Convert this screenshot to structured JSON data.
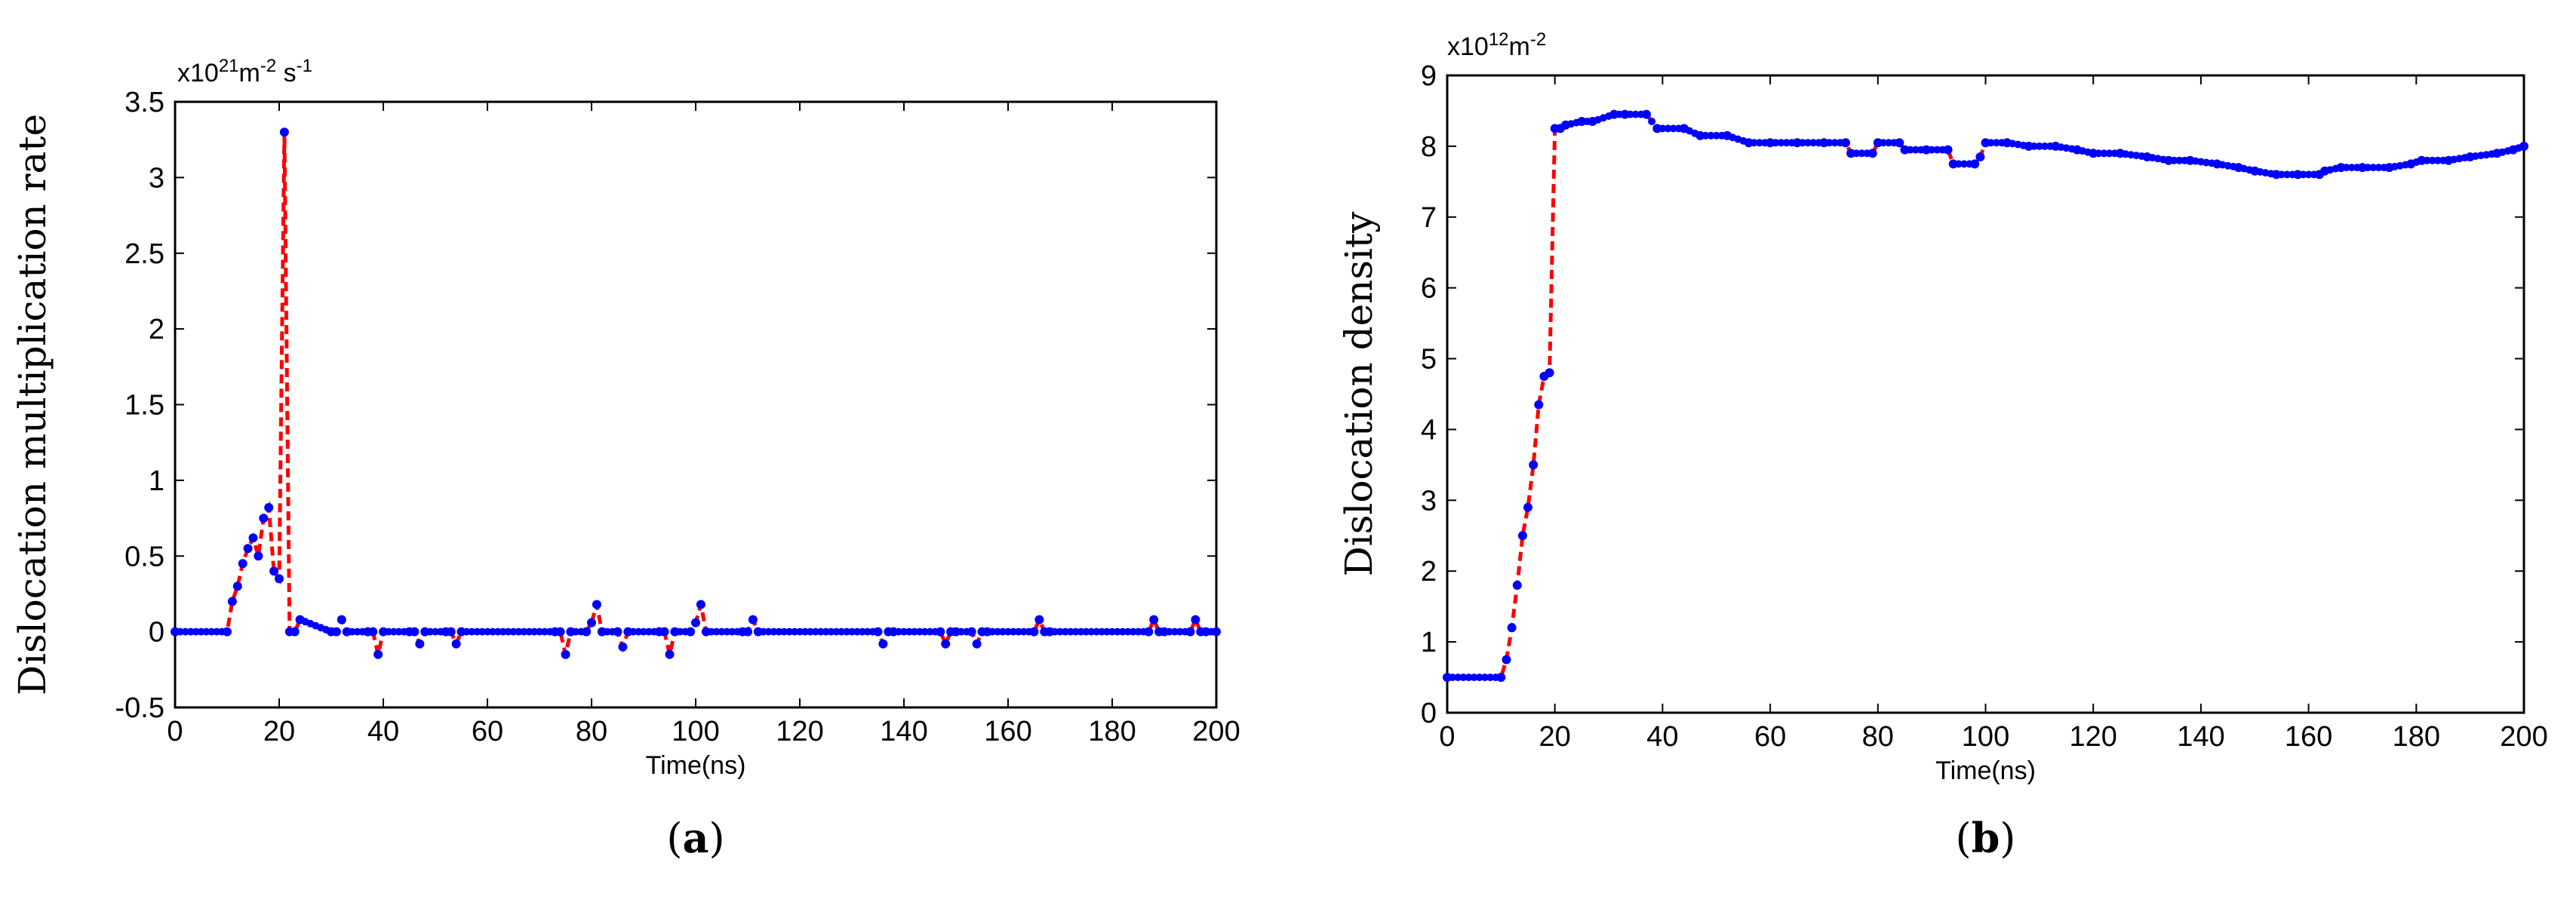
{
  "chart_data": [
    {
      "id": "a",
      "type": "line",
      "panel_label": "a",
      "ylabel": "Dislocation multiplication rate",
      "xlabel": "Time(ns)",
      "multiplier": {
        "base": "x10",
        "exp": "21",
        "unit1": "m",
        "unit1_exp": "-2",
        "unit2": " s",
        "unit2_exp": "-1"
      },
      "xlim": [
        0,
        200
      ],
      "ylim": [
        -0.5,
        3.5
      ],
      "xticks": [
        0,
        20,
        40,
        60,
        80,
        100,
        120,
        140,
        160,
        180,
        200
      ],
      "yticks": [
        -0.5,
        0,
        0.5,
        1,
        1.5,
        2,
        2.5,
        3,
        3.5
      ],
      "ytick_labels": [
        "-0.5",
        "0",
        "0.5",
        "1",
        "1.5",
        "2",
        "2.5",
        "3",
        "3.5"
      ],
      "series_colors": {
        "line": "#ff0000",
        "markers": "#0000ff"
      },
      "x": [
        0,
        10,
        11,
        12,
        13,
        14,
        15,
        16,
        17,
        18,
        19,
        20,
        21,
        22,
        23,
        24,
        30,
        31,
        32,
        33,
        37,
        38,
        39,
        40,
        45,
        46,
        47,
        48,
        52,
        53,
        54,
        55,
        73,
        74,
        75,
        76,
        79,
        80,
        81,
        82,
        85,
        86,
        87,
        93,
        94,
        95,
        96,
        99,
        100,
        101,
        102,
        109,
        110,
        111,
        112,
        135,
        136,
        137,
        138,
        147,
        148,
        149,
        150,
        153,
        154,
        155,
        156,
        165,
        166,
        167,
        168,
        187,
        188,
        189,
        190,
        195,
        196,
        197,
        198,
        200
      ],
      "y": [
        0,
        0,
        0.2,
        0.3,
        0.45,
        0.55,
        0.62,
        0.5,
        0.75,
        0.82,
        0.4,
        0.35,
        3.3,
        0,
        0,
        0.08,
        0,
        0,
        0.08,
        0,
        0,
        0,
        -0.15,
        0,
        0,
        0,
        -0.08,
        0,
        0,
        0,
        -0.08,
        0,
        0,
        0,
        -0.15,
        0,
        0,
        0.06,
        0.18,
        0,
        0,
        -0.1,
        0,
        0,
        0,
        -0.15,
        0,
        0,
        0.06,
        0.18,
        0,
        0,
        0,
        0.08,
        0,
        0,
        -0.08,
        0,
        0,
        0,
        -0.08,
        0,
        0,
        0,
        -0.08,
        0,
        0,
        0,
        0.08,
        0,
        0,
        0,
        0.08,
        0,
        0,
        0,
        0.08,
        0,
        0,
        0
      ]
    },
    {
      "id": "b",
      "type": "line",
      "panel_label": "b",
      "ylabel": "Dislocation density",
      "xlabel": "Time(ns)",
      "multiplier": {
        "base": "x10",
        "exp": "12",
        "unit1": "m",
        "unit1_exp": "-2",
        "unit2": "",
        "unit2_exp": ""
      },
      "xlim": [
        0,
        200
      ],
      "ylim": [
        0,
        9
      ],
      "xticks": [
        0,
        20,
        40,
        60,
        80,
        100,
        120,
        140,
        160,
        180,
        200
      ],
      "yticks": [
        0,
        1,
        2,
        3,
        4,
        5,
        6,
        7,
        8,
        9
      ],
      "ytick_labels": [
        "0",
        "1",
        "2",
        "3",
        "4",
        "5",
        "6",
        "7",
        "8",
        "9"
      ],
      "series_colors": {
        "line": "#ff0000",
        "markers": "#0000ff"
      },
      "x": [
        0,
        10,
        11,
        12,
        13,
        14,
        15,
        16,
        17,
        18,
        19,
        20,
        21,
        22,
        25,
        27,
        31,
        33,
        37,
        39,
        44,
        47,
        52,
        56,
        60,
        65,
        70,
        74,
        75,
        79,
        80,
        84,
        85,
        89,
        93,
        94,
        98,
        99,
        100,
        104,
        108,
        113,
        117,
        120,
        125,
        130,
        134,
        138,
        143,
        147,
        150,
        154,
        158,
        162,
        163,
        166,
        170,
        175,
        179,
        181,
        186,
        190,
        195,
        198,
        200
      ],
      "y": [
        0.5,
        0.5,
        0.75,
        1.2,
        1.8,
        2.5,
        2.9,
        3.5,
        4.35,
        4.75,
        4.8,
        8.25,
        8.25,
        8.3,
        8.35,
        8.35,
        8.45,
        8.45,
        8.45,
        8.25,
        8.25,
        8.15,
        8.15,
        8.05,
        8.05,
        8.05,
        8.05,
        8.05,
        7.9,
        7.9,
        8.05,
        8.05,
        7.95,
        7.95,
        7.95,
        7.75,
        7.75,
        7.85,
        8.05,
        8.05,
        8.0,
        8.0,
        7.95,
        7.9,
        7.9,
        7.85,
        7.8,
        7.8,
        7.75,
        7.7,
        7.65,
        7.6,
        7.6,
        7.6,
        7.65,
        7.7,
        7.7,
        7.7,
        7.75,
        7.8,
        7.8,
        7.85,
        7.9,
        7.95,
        8.0
      ]
    }
  ]
}
